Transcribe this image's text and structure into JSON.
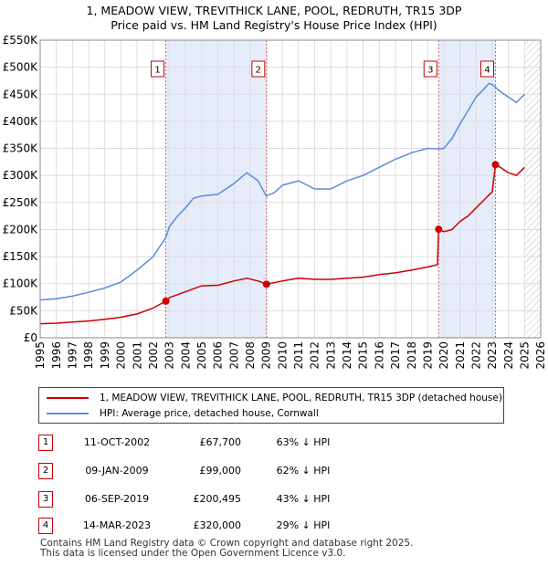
{
  "title_line1": "1, MEADOW VIEW, TREVITHICK LANE, POOL, REDRUTH, TR15 3DP",
  "title_line2": "Price paid vs. HM Land Registry's House Price Index (HPI)",
  "colors": {
    "property_line": "#cc0000",
    "hpi_line": "#5b8ed6",
    "shade": "#e6ecfa",
    "grid": "#dddddd",
    "marker_border": "#cc0000",
    "vline": "#e06060"
  },
  "legend": {
    "property_label": "1, MEADOW VIEW, TREVITHICK LANE, POOL, REDRUTH, TR15 3DP (detached house)",
    "hpi_label": "HPI: Average price, detached house, Cornwall"
  },
  "transactions": [
    {
      "num": "1",
      "date": "11-OCT-2002",
      "price": "£67,700",
      "hpi": "63% ↓ HPI"
    },
    {
      "num": "2",
      "date": "09-JAN-2009",
      "price": "£99,000",
      "hpi": "62% ↓ HPI"
    },
    {
      "num": "3",
      "date": "06-SEP-2019",
      "price": "£200,495",
      "hpi": "43% ↓ HPI"
    },
    {
      "num": "4",
      "date": "14-MAR-2023",
      "price": "£320,000",
      "hpi": "29% ↓ HPI"
    }
  ],
  "footer": {
    "line1": "Contains HM Land Registry data © Crown copyright and database right 2025.",
    "line2": "This data is licensed under the Open Government Licence v3.0."
  },
  "chart_data": {
    "type": "line",
    "title": "Price paid vs. HM Land Registry's House Price Index (HPI)",
    "xlabel": "",
    "ylabel": "",
    "xlim": [
      1995,
      2026
    ],
    "ylim": [
      0,
      550000
    ],
    "x_ticks": [
      "1995",
      "1996",
      "1997",
      "1998",
      "1999",
      "2000",
      "2001",
      "2002",
      "2003",
      "2004",
      "2005",
      "2006",
      "2007",
      "2008",
      "2009",
      "2010",
      "2011",
      "2012",
      "2013",
      "2014",
      "2015",
      "2016",
      "2017",
      "2018",
      "2019",
      "2020",
      "2021",
      "2022",
      "2023",
      "2024",
      "2025",
      "2026"
    ],
    "y_ticks": [
      {
        "value": 0,
        "label": "£0"
      },
      {
        "value": 50000,
        "label": "£50K"
      },
      {
        "value": 100000,
        "label": "£100K"
      },
      {
        "value": 150000,
        "label": "£150K"
      },
      {
        "value": 200000,
        "label": "£200K"
      },
      {
        "value": 250000,
        "label": "£250K"
      },
      {
        "value": 300000,
        "label": "£300K"
      },
      {
        "value": 350000,
        "label": "£350K"
      },
      {
        "value": 400000,
        "label": "£400K"
      },
      {
        "value": 450000,
        "label": "£450K"
      },
      {
        "value": 500000,
        "label": "£500K"
      },
      {
        "value": 550000,
        "label": "£550K"
      }
    ],
    "shaded_ranges": [
      [
        2002.78,
        2009.02
      ],
      [
        2019.68,
        2023.2
      ]
    ],
    "hatched_from": 2025.0,
    "sales": [
      {
        "label": "1",
        "x": 2002.78,
        "y": 67700
      },
      {
        "label": "2",
        "x": 2009.02,
        "y": 99000
      },
      {
        "label": "3",
        "x": 2019.68,
        "y": 200495
      },
      {
        "label": "4",
        "x": 2023.2,
        "y": 320000
      }
    ],
    "series": [
      {
        "name": "1, MEADOW VIEW, TREVITHICK LANE, POOL, REDRUTH, TR15 3DP (detached house)",
        "x": [
          1995,
          1996,
          1997,
          1998,
          1999,
          2000,
          2001,
          2002,
          2002.78,
          2003,
          2004,
          2005,
          2006,
          2007,
          2007.8,
          2008.5,
          2009.02,
          2010,
          2011,
          2012,
          2013,
          2014,
          2015,
          2016,
          2017,
          2018,
          2019,
          2019.6,
          2019.68,
          2020,
          2020.5,
          2021,
          2021.5,
          2022,
          2022.5,
          2023.0,
          2023.2,
          2023.5,
          2024,
          2024.5,
          2025
        ],
        "y": [
          26000,
          27000,
          29000,
          31000,
          34000,
          38000,
          44000,
          55000,
          67700,
          74000,
          85000,
          96000,
          97000,
          105000,
          110000,
          105000,
          99000,
          105000,
          110000,
          108000,
          108000,
          110000,
          112000,
          117000,
          120000,
          125000,
          131000,
          135000,
          200495,
          196000,
          200000,
          215000,
          225000,
          240000,
          255000,
          270000,
          320000,
          315000,
          305000,
          300000,
          315000
        ]
      },
      {
        "name": "HPI: Average price, detached house, Cornwall",
        "x": [
          1995,
          1996,
          1997,
          1998,
          1999,
          2000,
          2001,
          2002,
          2002.78,
          2003,
          2003.5,
          2004,
          2004.5,
          2005,
          2006,
          2007,
          2007.8,
          2008.5,
          2009.0,
          2009.5,
          2010,
          2011,
          2012,
          2013,
          2014,
          2015,
          2016,
          2017,
          2018,
          2019,
          2019.7,
          2020,
          2020.5,
          2021,
          2021.5,
          2022,
          2022.5,
          2022.8,
          2023.0,
          2023.5,
          2024,
          2024.5,
          2025
        ],
        "y": [
          70000,
          72000,
          77000,
          84000,
          92000,
          103000,
          125000,
          150000,
          185000,
          205000,
          225000,
          240000,
          258000,
          262000,
          265000,
          285000,
          305000,
          290000,
          262000,
          268000,
          282000,
          290000,
          275000,
          275000,
          290000,
          300000,
          315000,
          330000,
          342000,
          350000,
          349000,
          350000,
          368000,
          395000,
          420000,
          445000,
          460000,
          470000,
          468000,
          455000,
          445000,
          435000,
          450000
        ]
      }
    ]
  }
}
